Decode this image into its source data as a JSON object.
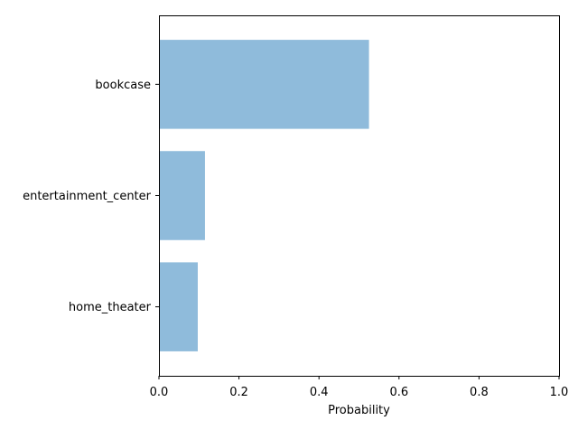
{
  "chart_data": {
    "type": "bar",
    "orientation": "horizontal",
    "categories": [
      "bookcase",
      "entertainment_center",
      "home_theater"
    ],
    "values": [
      0.525,
      0.115,
      0.097
    ],
    "xlabel": "Probability",
    "ylabel": "",
    "xlim": [
      0,
      1.0
    ],
    "xticks": [
      "0.0",
      "0.2",
      "0.4",
      "0.6",
      "0.8",
      "1.0"
    ],
    "bar_color": "#8fbbdb",
    "grid": false
  }
}
